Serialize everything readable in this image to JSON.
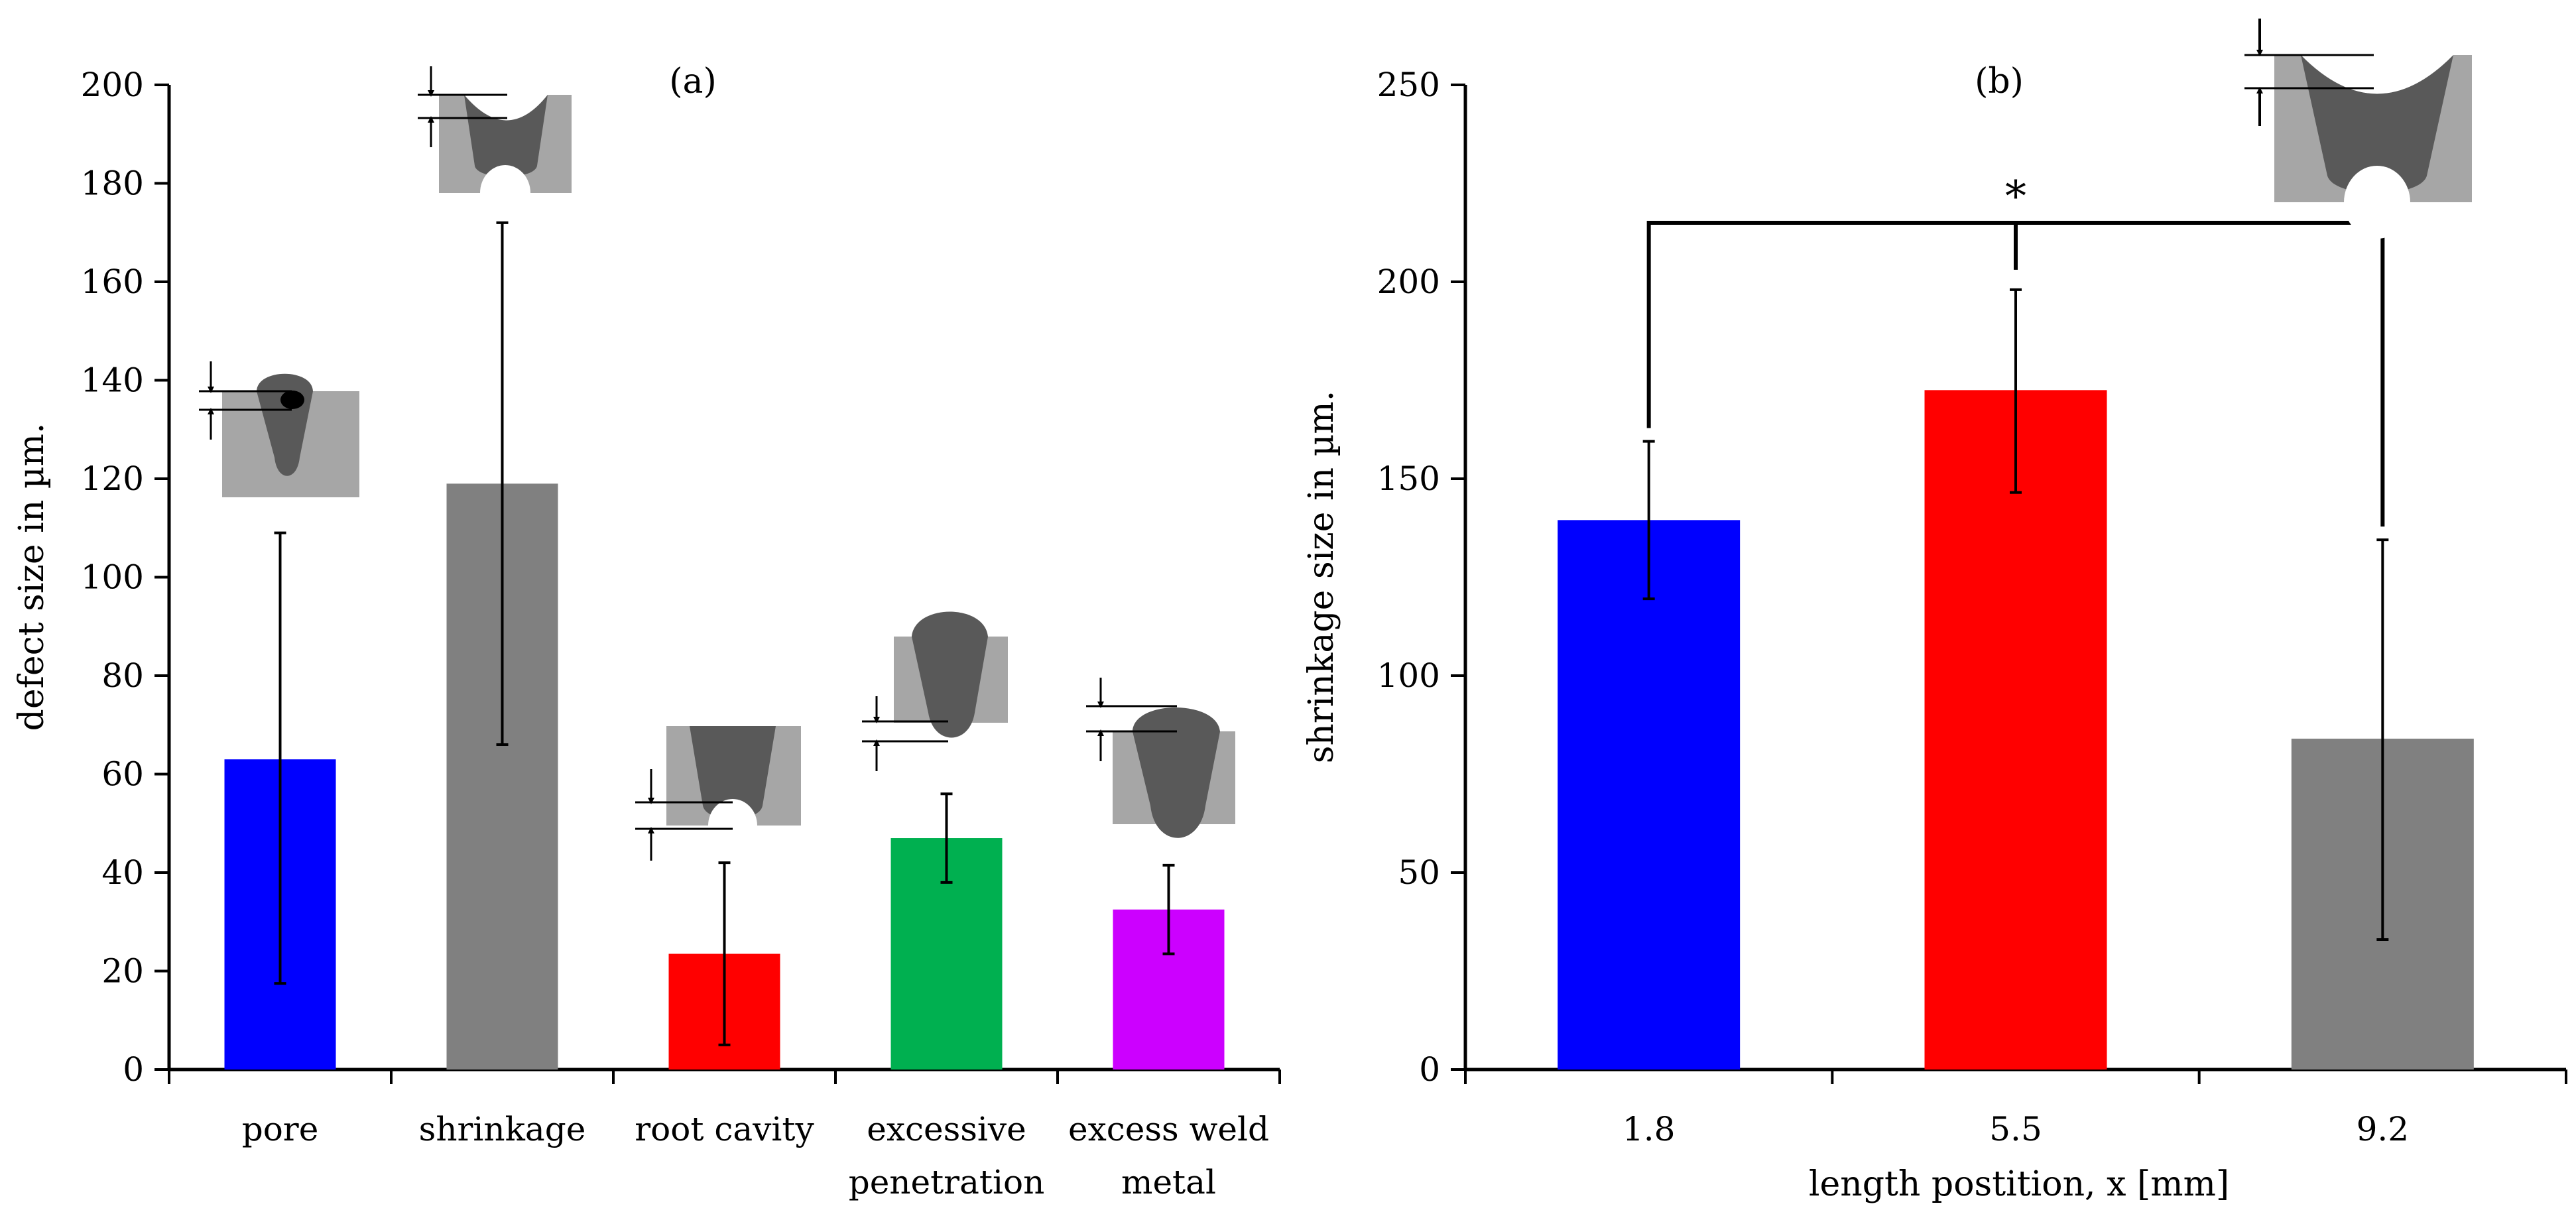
{
  "chart_data": [
    {
      "type": "bar",
      "panel_label": "(a)",
      "title": "",
      "xlabel": "",
      "ylabel": "defect size in µm.",
      "ylim": [
        0,
        200
      ],
      "yticks": [
        0,
        20,
        40,
        60,
        80,
        100,
        120,
        140,
        160,
        180,
        200
      ],
      "categories": [
        [
          "pore"
        ],
        [
          "shrinkage"
        ],
        [
          "root cavity"
        ],
        [
          "excessive",
          "penetration"
        ],
        [
          "excess weld",
          "metal"
        ]
      ],
      "values": [
        63,
        119,
        23.5,
        47,
        32.5
      ],
      "error_low": [
        17.5,
        66,
        5,
        38,
        23.5
      ],
      "error_high": [
        109,
        172,
        42,
        56,
        41.5
      ],
      "colors": [
        "#0000ff",
        "#808080",
        "#ff0000",
        "#00b050",
        "#cc00ff"
      ],
      "grid": false
    },
    {
      "type": "bar",
      "panel_label": "(b)",
      "title": "",
      "xlabel": "length postition, x [mm]",
      "ylabel": "shrinkage size in µm.",
      "ylim": [
        0,
        250
      ],
      "yticks": [
        0,
        50,
        100,
        150,
        200,
        250
      ],
      "categories": [
        [
          "1.8"
        ],
        [
          "5.5"
        ],
        [
          "9.2"
        ]
      ],
      "values": [
        139.5,
        172.5,
        84
      ],
      "error_low": [
        119.5,
        146.5,
        33
      ],
      "error_high": [
        159.5,
        198,
        134.5
      ],
      "colors": [
        "#0000ff",
        "#ff0000",
        "#808080"
      ],
      "significance": {
        "label": "*",
        "from": 0,
        "to": 2,
        "mid": 1
      },
      "grid": false
    }
  ]
}
